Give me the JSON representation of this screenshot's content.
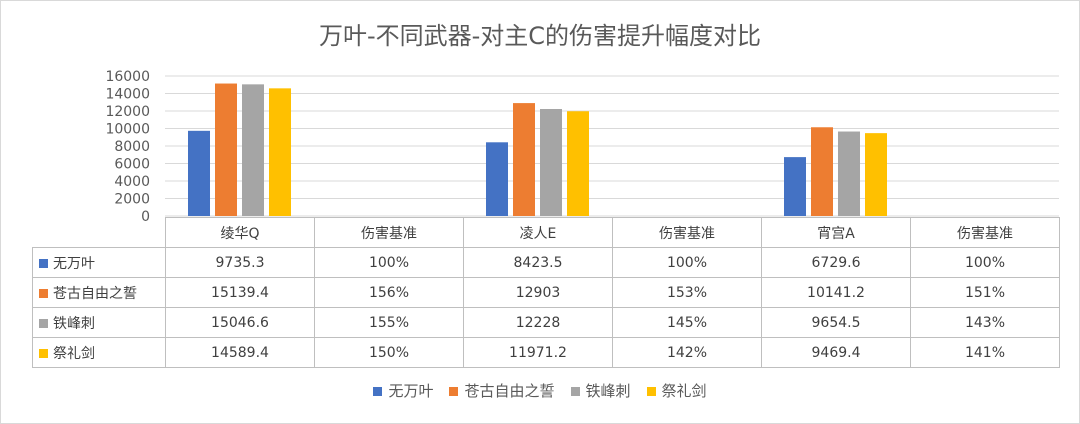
{
  "chart_data": {
    "type": "bar",
    "title": "万叶-不同武器-对主C的伤害提升幅度对比",
    "categories": [
      "绫华Q",
      "伤害基准",
      "凌人E",
      "伤害基准",
      "宵宫A",
      "伤害基准"
    ],
    "ylim": [
      0,
      16000
    ],
    "yticks": [
      "0",
      "2000",
      "4000",
      "6000",
      "8000",
      "10000",
      "12000",
      "14000",
      "16000"
    ],
    "grid": true,
    "legend_position": "bottom",
    "series": [
      {
        "name": "无万叶",
        "color": "#4472C4",
        "values": [
          9735.3,
          null,
          8423.5,
          null,
          6729.6,
          null
        ],
        "labels": [
          "9735.3",
          "100%",
          "8423.5",
          "100%",
          "6729.6",
          "100%"
        ]
      },
      {
        "name": "苍古自由之誓",
        "color": "#ED7D31",
        "values": [
          15139.4,
          null,
          12903,
          null,
          10141.2,
          null
        ],
        "labels": [
          "15139.4",
          "156%",
          "12903",
          "153%",
          "10141.2",
          "151%"
        ]
      },
      {
        "name": "铁峰刺",
        "color": "#A5A5A5",
        "values": [
          15046.6,
          null,
          12228,
          null,
          9654.5,
          null
        ],
        "labels": [
          "15046.6",
          "155%",
          "12228",
          "145%",
          "9654.5",
          "143%"
        ]
      },
      {
        "name": "祭礼剑",
        "color": "#FFC000",
        "values": [
          14589.4,
          null,
          11971.2,
          null,
          9469.4,
          null
        ],
        "labels": [
          "14589.4",
          "150%",
          "11971.2",
          "142%",
          "9469.4",
          "141%"
        ]
      }
    ]
  }
}
